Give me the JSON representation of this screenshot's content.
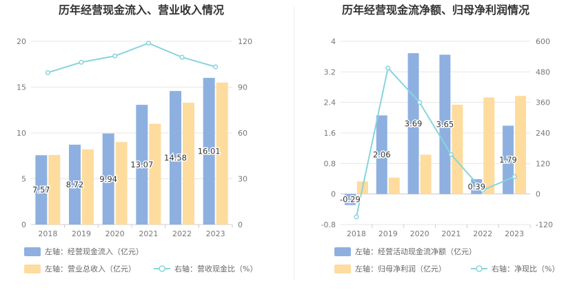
{
  "colors": {
    "bar_blue": "#8eb0e0",
    "bar_yellow": "#fedc9e",
    "line_cyan": "#86d4dd",
    "title": "#333333",
    "axis_text": "#777777",
    "grid": "#e5e5e5"
  },
  "chart_data": [
    {
      "type": "bar",
      "title": "历年经营现金流入、营业收入情况",
      "categories": [
        "2018",
        "2019",
        "2020",
        "2021",
        "2022",
        "2023"
      ],
      "y_left": {
        "ticks": [
          "0",
          "5",
          "10",
          "15",
          "20"
        ],
        "range": [
          0,
          20
        ]
      },
      "y_right": {
        "ticks": [
          "0",
          "30",
          "60",
          "90",
          "120"
        ],
        "range": [
          0,
          120
        ]
      },
      "series": [
        {
          "name": "左轴：经营现金流入（亿元）",
          "kind": "bar",
          "axis": "left",
          "color": "#8eb0e0",
          "values": [
            7.57,
            8.72,
            9.94,
            13.07,
            14.58,
            16.01
          ],
          "labels": [
            "7.57",
            "8.72",
            "9.94",
            "13.07",
            "14.58",
            "16.01"
          ]
        },
        {
          "name": "左轴：营业总收入（亿元）",
          "kind": "bar",
          "axis": "left",
          "color": "#fedc9e",
          "values": [
            7.6,
            8.2,
            9.0,
            11.0,
            13.3,
            15.5
          ]
        },
        {
          "name": "右轴：营收现金比（%）",
          "kind": "line",
          "axis": "right",
          "color": "#86d4dd",
          "values": [
            99.5,
            106.3,
            110.4,
            118.8,
            109.6,
            103.3
          ]
        }
      ],
      "legend": [
        {
          "series": 0,
          "text": "左轴：经营现金流入（亿元）"
        },
        {
          "series": 1,
          "text": "左轴：营业总收入（亿元）"
        },
        {
          "series": 2,
          "text": "右轴：营收现金比（%）"
        }
      ]
    },
    {
      "type": "bar",
      "title": "历年经营现金流净额、归母净利润情况",
      "categories": [
        "2018",
        "2019",
        "2020",
        "2021",
        "2022",
        "2023"
      ],
      "y_left": {
        "ticks": [
          "-0.8",
          "0",
          "0.8",
          "1.6",
          "2.4",
          "3.2",
          "4"
        ],
        "range": [
          -0.8,
          4
        ]
      },
      "y_right": {
        "ticks": [
          "-120",
          "0",
          "120",
          "240",
          "360",
          "480",
          "600"
        ],
        "range": [
          -120,
          600
        ]
      },
      "series": [
        {
          "name": "左轴：经营活动现金流净额（亿元）",
          "kind": "bar",
          "axis": "left",
          "color": "#8eb0e0",
          "values": [
            -0.29,
            2.06,
            3.69,
            3.65,
            0.39,
            1.79
          ],
          "labels": [
            "-0.29",
            "2.06",
            "3.69",
            "3.65",
            "0.39",
            "1.79"
          ]
        },
        {
          "name": "左轴：归母净利润（亿元）",
          "kind": "bar",
          "axis": "left",
          "color": "#fedc9e",
          "values": [
            0.33,
            0.43,
            1.03,
            2.34,
            2.53,
            2.57
          ]
        },
        {
          "name": "右轴：净现比（%）",
          "kind": "line",
          "axis": "right",
          "color": "#86d4dd",
          "values": [
            -90,
            495,
            360,
            155,
            15,
            68
          ]
        }
      ],
      "legend": [
        {
          "series": 0,
          "text": "左轴：经营活动现金流净额（亿元）"
        },
        {
          "series": 1,
          "text": "左轴：归母净利润（亿元）"
        },
        {
          "series": 2,
          "text": "右轴：净现比（%）"
        }
      ]
    }
  ]
}
